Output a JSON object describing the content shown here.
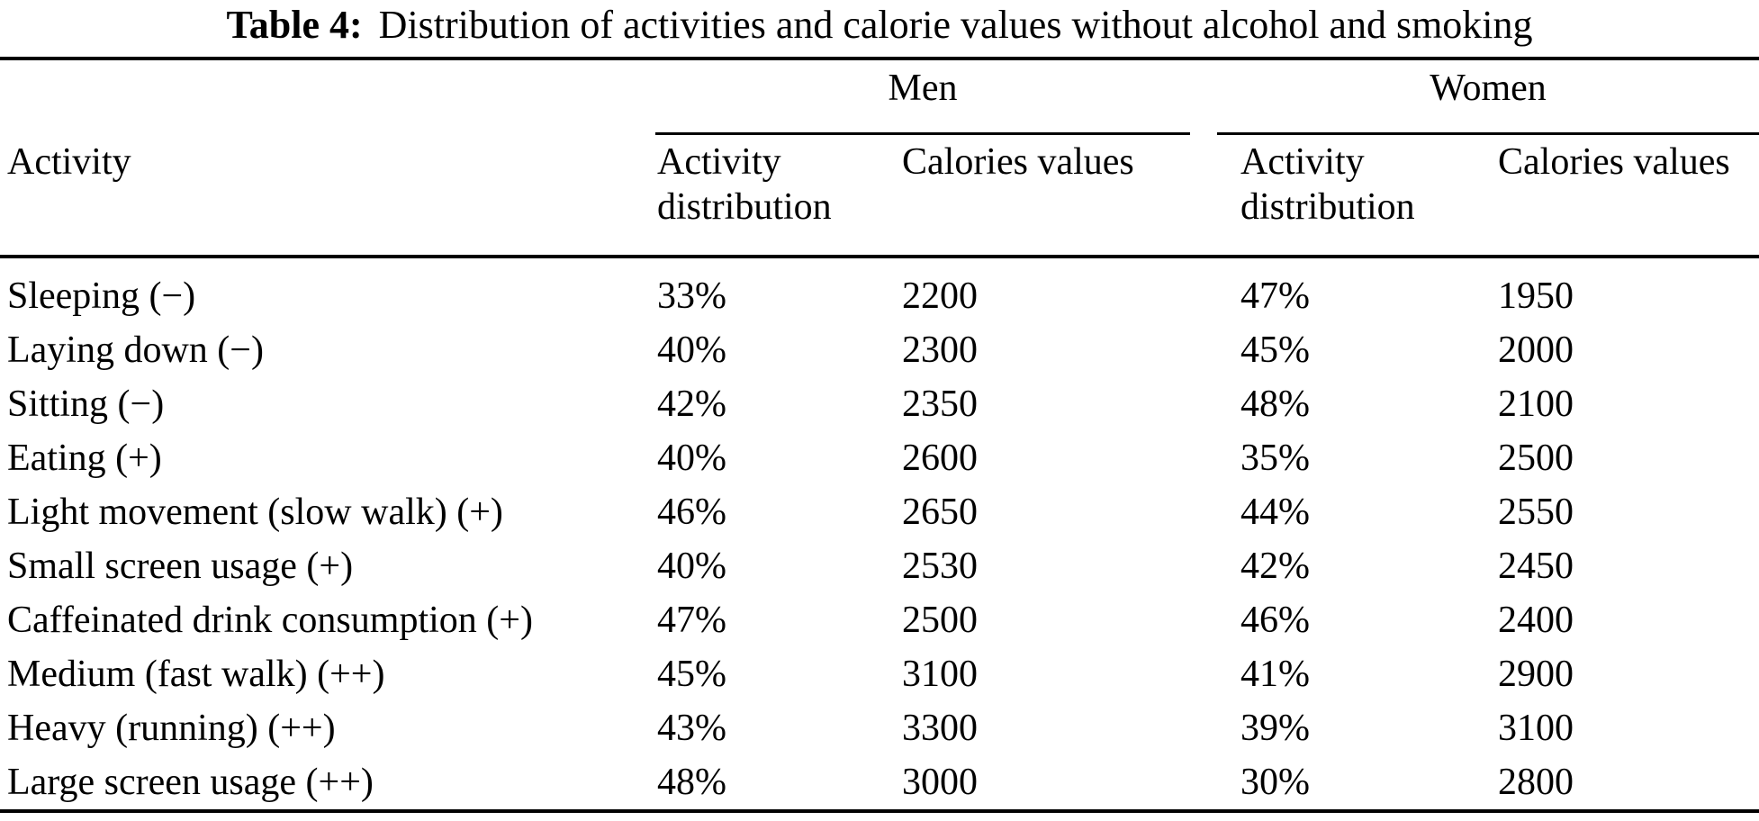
{
  "caption": {
    "label": "Table 4:",
    "text": "Distribution of activities and calorie values without alcohol and smoking"
  },
  "table": {
    "groups": {
      "men": "Men",
      "women": "Women"
    },
    "columns": {
      "activity": "Activity",
      "activity_distribution_line1": "Activity",
      "activity_distribution_line2": "distribution",
      "calories_values": "Calories values"
    },
    "rows": [
      {
        "activity": "Sleeping (−)",
        "men_distribution": "33%",
        "men_calories": "2200",
        "women_distribution": "47%",
        "women_calories": "1950"
      },
      {
        "activity": "Laying down (−)",
        "men_distribution": "40%",
        "men_calories": "2300",
        "women_distribution": "45%",
        "women_calories": "2000"
      },
      {
        "activity": "Sitting (−)",
        "men_distribution": "42%",
        "men_calories": "2350",
        "women_distribution": "48%",
        "women_calories": "2100"
      },
      {
        "activity": "Eating (+)",
        "men_distribution": "40%",
        "men_calories": "2600",
        "women_distribution": "35%",
        "women_calories": "2500"
      },
      {
        "activity": "Light movement (slow walk) (+)",
        "men_distribution": "46%",
        "men_calories": "2650",
        "women_distribution": "44%",
        "women_calories": "2550"
      },
      {
        "activity": "Small screen usage (+)",
        "men_distribution": "40%",
        "men_calories": "2530",
        "women_distribution": "42%",
        "women_calories": "2450"
      },
      {
        "activity": "Caffeinated drink consumption (+)",
        "men_distribution": "47%",
        "men_calories": "2500",
        "women_distribution": "46%",
        "women_calories": "2400"
      },
      {
        "activity": "Medium (fast walk) (++)",
        "men_distribution": "45%",
        "men_calories": "3100",
        "women_distribution": "41%",
        "women_calories": "2900"
      },
      {
        "activity": "Heavy (running) (++)",
        "men_distribution": "43%",
        "men_calories": "3300",
        "women_distribution": "39%",
        "women_calories": "3100"
      },
      {
        "activity": "Large screen usage (++)",
        "men_distribution": "48%",
        "men_calories": "3000",
        "women_distribution": "30%",
        "women_calories": "2800"
      }
    ]
  },
  "chart_data": {
    "type": "table",
    "title": "Table 4: Distribution of activities and calorie values without alcohol and smoking",
    "columns": [
      "Activity",
      "Men Activity distribution",
      "Men Calories values",
      "Women Activity distribution",
      "Women Calories values"
    ],
    "rows": [
      [
        "Sleeping (−)",
        "33%",
        2200,
        "47%",
        1950
      ],
      [
        "Laying down (−)",
        "40%",
        2300,
        "45%",
        2000
      ],
      [
        "Sitting (−)",
        "42%",
        2350,
        "48%",
        2100
      ],
      [
        "Eating (+)",
        "40%",
        2600,
        "35%",
        2500
      ],
      [
        "Light movement (slow walk) (+)",
        "46%",
        2650,
        "44%",
        2550
      ],
      [
        "Small screen usage (+)",
        "40%",
        2530,
        "42%",
        2450
      ],
      [
        "Caffeinated drink consumption (+)",
        "47%",
        2500,
        "46%",
        2400
      ],
      [
        "Medium (fast walk) (++)",
        "45%",
        3100,
        "41%",
        2900
      ],
      [
        "Heavy (running) (++)",
        "43%",
        3300,
        "39%",
        3100
      ],
      [
        "Large screen usage (++)",
        "48%",
        3000,
        "30%",
        2800
      ]
    ]
  }
}
